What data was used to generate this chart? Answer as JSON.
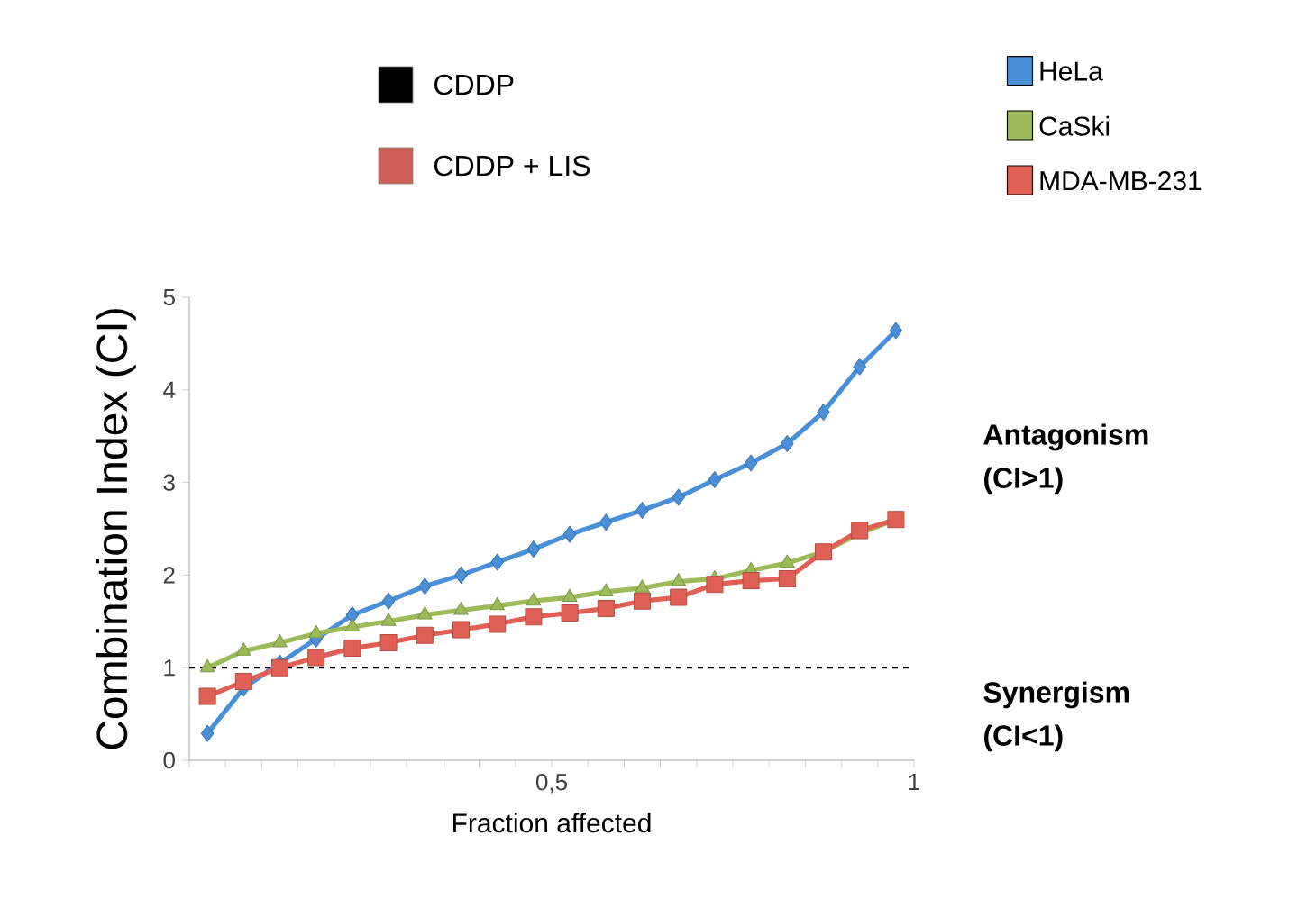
{
  "chart_data": {
    "type": "line",
    "xlabel": "Fraction affected",
    "ylabel": "Combination Index (CI)",
    "x": [
      0.025,
      0.075,
      0.125,
      0.175,
      0.225,
      0.275,
      0.325,
      0.375,
      0.425,
      0.475,
      0.525,
      0.575,
      0.625,
      0.675,
      0.725,
      0.775,
      0.825,
      0.875,
      0.925,
      0.975
    ],
    "series": [
      {
        "name": "HeLa",
        "color": "#4a90d9",
        "marker": "diamond",
        "values": [
          0.29,
          0.78,
          1.05,
          1.31,
          1.57,
          1.72,
          1.88,
          2.0,
          2.14,
          2.28,
          2.44,
          2.57,
          2.7,
          2.84,
          3.03,
          3.21,
          3.42,
          3.76,
          4.25,
          4.64
        ]
      },
      {
        "name": "CaSki",
        "color": "#9bbb59",
        "marker": "triangle",
        "values": [
          1.0,
          1.18,
          1.27,
          1.37,
          1.44,
          1.5,
          1.57,
          1.62,
          1.67,
          1.72,
          1.76,
          1.82,
          1.86,
          1.93,
          1.96,
          2.05,
          2.13,
          2.25,
          2.45,
          2.6
        ]
      },
      {
        "name": "MDA-MB-231",
        "color": "#e06055",
        "marker": "square",
        "values": [
          0.69,
          0.85,
          1.0,
          1.11,
          1.21,
          1.27,
          1.35,
          1.41,
          1.47,
          1.55,
          1.59,
          1.64,
          1.72,
          1.76,
          1.9,
          1.94,
          1.96,
          2.25,
          2.48,
          2.6
        ]
      }
    ],
    "xlim": [
      0,
      1
    ],
    "ylim": [
      0,
      5
    ],
    "xticks": [
      {
        "value": 0,
        "label": null
      },
      {
        "value": 0.05,
        "label": null
      },
      {
        "value": 0.1,
        "label": null
      },
      {
        "value": 0.15,
        "label": null
      },
      {
        "value": 0.2,
        "label": null
      },
      {
        "value": 0.25,
        "label": null
      },
      {
        "value": 0.3,
        "label": null
      },
      {
        "value": 0.35,
        "label": null
      },
      {
        "value": 0.4,
        "label": null
      },
      {
        "value": 0.45,
        "label": null
      },
      {
        "value": 0.5,
        "label": "0,5"
      },
      {
        "value": 0.55,
        "label": null
      },
      {
        "value": 0.6,
        "label": null
      },
      {
        "value": 0.65,
        "label": null
      },
      {
        "value": 0.7,
        "label": null
      },
      {
        "value": 0.75,
        "label": null
      },
      {
        "value": 0.8,
        "label": null
      },
      {
        "value": 0.85,
        "label": null
      },
      {
        "value": 0.9,
        "label": null
      },
      {
        "value": 0.95,
        "label": null
      },
      {
        "value": 1,
        "label": "1"
      }
    ],
    "yticks": [
      0,
      1,
      2,
      3,
      4,
      5
    ],
    "ref_lines": [
      {
        "axis": "y",
        "value": 1,
        "color": "#000000",
        "line_style": "dashed"
      }
    ],
    "annotations": [
      "CDDP",
      "CDDP + LIS",
      "Antagonism (CI>1)",
      "Synergism (CI<1)"
    ],
    "legend": "top right",
    "grid": false
  }
}
